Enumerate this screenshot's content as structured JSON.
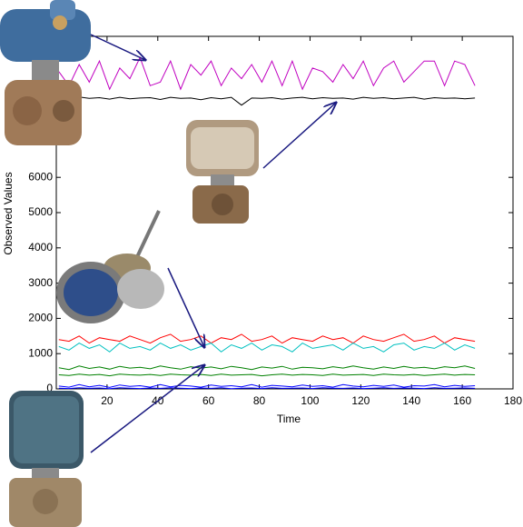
{
  "chart_data": {
    "type": "line",
    "xlabel": "Time",
    "ylabel": "Observed Values",
    "xlim": [
      0,
      180
    ],
    "xticks": [
      20,
      40,
      60,
      80,
      100,
      120,
      140,
      160,
      180
    ],
    "ylim": [
      0,
      10000
    ],
    "yticks": [
      0,
      1000,
      2000,
      3000,
      4000,
      5000,
      6000
    ],
    "x": [
      1,
      5,
      9,
      13,
      17,
      21,
      25,
      29,
      33,
      37,
      41,
      45,
      49,
      53,
      57,
      61,
      65,
      69,
      73,
      77,
      81,
      85,
      89,
      93,
      97,
      101,
      105,
      109,
      113,
      117,
      121,
      125,
      129,
      133,
      137,
      141,
      145,
      149,
      153,
      157,
      161,
      165
    ],
    "series": [
      {
        "color": "#c000c0",
        "values": [
          9000,
          8600,
          9200,
          8700,
          9300,
          8500,
          9100,
          8800,
          9400,
          8600,
          8700,
          9300,
          8500,
          9200,
          8900,
          9300,
          8600,
          9100,
          8800,
          9200,
          8700,
          9300,
          8600,
          9300,
          8500,
          9100,
          9000,
          8700,
          9200,
          8800,
          9300,
          8600,
          9100,
          9300,
          8700,
          9000,
          9300,
          9300,
          8600,
          9300,
          9200,
          8600
        ]
      },
      {
        "color": "#000000",
        "values": [
          8250,
          8200,
          8280,
          8240,
          8260,
          8220,
          8270,
          8230,
          8250,
          8260,
          8210,
          8270,
          8240,
          8250,
          8200,
          8260,
          8230,
          8270,
          8050,
          8250,
          8240,
          8260,
          8220,
          8250,
          8270,
          8230,
          8260,
          8240,
          8250,
          8220,
          8270,
          8240,
          8260,
          8230,
          8250,
          8270,
          8220,
          8260,
          8240,
          8250,
          8230,
          8250
        ]
      },
      {
        "color": "#ff0000",
        "values": [
          1400,
          1350,
          1500,
          1300,
          1450,
          1400,
          1350,
          1500,
          1400,
          1300,
          1450,
          1550,
          1350,
          1400,
          1500,
          1300,
          1450,
          1400,
          1550,
          1350,
          1400,
          1500,
          1300,
          1450,
          1400,
          1350,
          1500,
          1400,
          1450,
          1300,
          1500,
          1400,
          1350,
          1450,
          1550,
          1350,
          1400,
          1500,
          1300,
          1450,
          1400,
          1350
        ]
      },
      {
        "color": "#00c0c0",
        "values": [
          1200,
          1100,
          1300,
          1150,
          1250,
          1050,
          1300,
          1150,
          1200,
          1100,
          1300,
          1150,
          1250,
          1100,
          1200,
          1300,
          1050,
          1250,
          1150,
          1300,
          1100,
          1250,
          1200,
          1050,
          1300,
          1150,
          1200,
          1250,
          1100,
          1300,
          1150,
          1200,
          1050,
          1250,
          1300,
          1100,
          1200,
          1150,
          1300,
          1100,
          1250,
          1150
        ]
      },
      {
        "color": "#008000",
        "values": [
          600,
          550,
          650,
          580,
          620,
          560,
          640,
          590,
          610,
          570,
          650,
          600,
          560,
          630,
          590,
          620,
          570,
          640,
          600,
          550,
          620,
          590,
          640,
          560,
          610,
          600,
          570,
          630,
          590,
          650,
          600,
          560,
          620,
          580,
          640,
          590,
          610,
          570,
          630,
          600,
          650,
          580
        ]
      },
      {
        "color": "#008000",
        "values": [
          400,
          380,
          420,
          390,
          410,
          370,
          420,
          400,
          390,
          410,
          380,
          420,
          400,
          390,
          410,
          380,
          420,
          390,
          400,
          410,
          370,
          400,
          420,
          390,
          410,
          400,
          380,
          420,
          390,
          400,
          410,
          380,
          420,
          400,
          390,
          410,
          380,
          400,
          420,
          390,
          410,
          400
        ]
      },
      {
        "color": "#0000ff",
        "values": [
          80,
          50,
          120,
          60,
          100,
          40,
          110,
          70,
          90,
          50,
          120,
          60,
          100,
          80,
          50,
          110,
          70,
          90,
          60,
          120,
          50,
          100,
          80,
          60,
          110,
          70,
          90,
          50,
          120,
          80,
          60,
          100,
          70,
          110,
          50,
          90,
          80,
          120,
          60,
          100,
          70,
          90
        ]
      },
      {
        "color": "#0000ff",
        "values": [
          20,
          10,
          30,
          15,
          25,
          5,
          30,
          20,
          10,
          25,
          15,
          30,
          20,
          10,
          25,
          15,
          30,
          5,
          20,
          25,
          10,
          30,
          15,
          20,
          25,
          10,
          30,
          20,
          15,
          25,
          10,
          20,
          30,
          15,
          25,
          20,
          10,
          30,
          15,
          20,
          25,
          15
        ]
      }
    ]
  }
}
